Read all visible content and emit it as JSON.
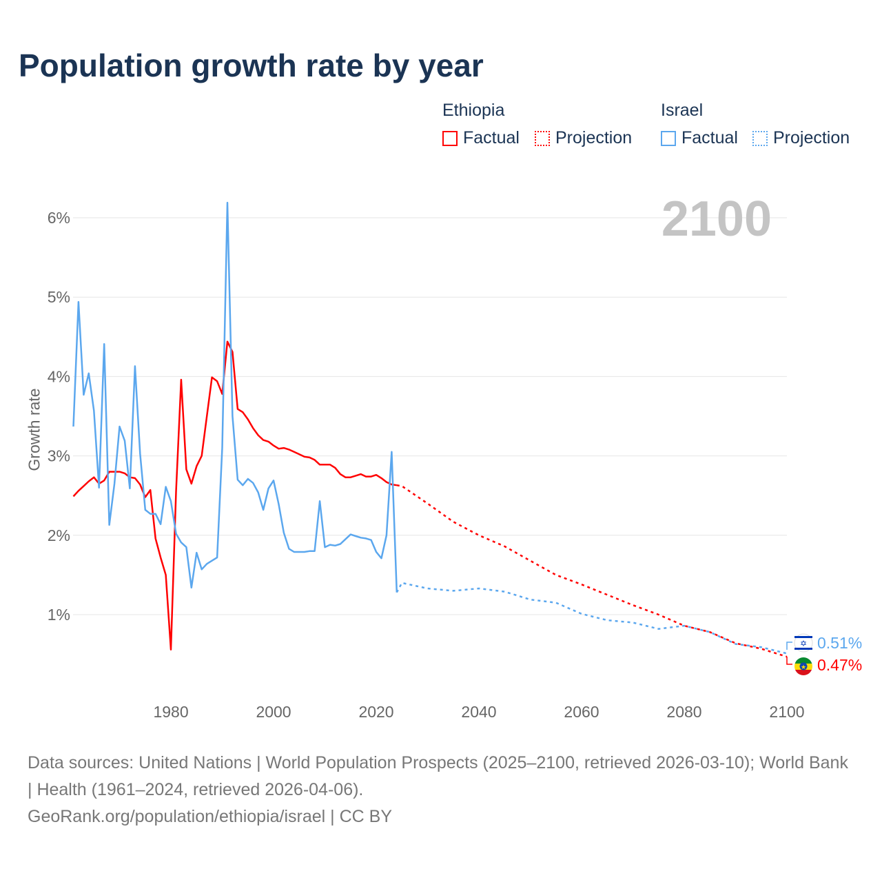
{
  "title": "Population growth rate by year",
  "legend": {
    "groups": [
      {
        "name": "Ethiopia",
        "factual": "Factual",
        "projection": "Projection",
        "color": "#ff0000"
      },
      {
        "name": "Israel",
        "factual": "Factual",
        "projection": "Projection",
        "color": "#5ba7ee"
      }
    ]
  },
  "year_label": "2100",
  "end_labels": {
    "israel": "0.51%",
    "ethiopia": "0.47%"
  },
  "footer": {
    "sources": "Data sources: United Nations | World Population Prospects (2025–2100, retrieved 2026-03-10); World Bank | Health (1961–2024, retrieved 2026-04-06).",
    "link": "GeoRank.org/population/ethiopia/israel | CC BY"
  },
  "chart_data": {
    "type": "line",
    "title": "Population growth rate by year",
    "xlabel": "",
    "ylabel": "Growth rate",
    "xlim": [
      1961,
      2100
    ],
    "ylim": [
      0,
      6.5
    ],
    "xticks": [
      1980,
      2000,
      2020,
      2040,
      2060,
      2080,
      2100
    ],
    "xtick_labels": [
      "1980",
      "2000",
      "2020",
      "2040",
      "2060",
      "2080",
      "2100"
    ],
    "yticks": [
      1,
      2,
      3,
      4,
      5,
      6
    ],
    "ytick_labels": [
      "1%",
      "2%",
      "3%",
      "4%",
      "5%",
      "6%"
    ],
    "grid": true,
    "legend_placement": "top-right",
    "series": [
      {
        "name": "Ethiopia Factual",
        "color": "#ff0000",
        "style": "solid",
        "x": [
          1961,
          1962,
          1963,
          1964,
          1965,
          1966,
          1967,
          1968,
          1969,
          1970,
          1971,
          1972,
          1973,
          1974,
          1975,
          1976,
          1977,
          1978,
          1979,
          1980,
          1981,
          1982,
          1983,
          1984,
          1985,
          1986,
          1987,
          1988,
          1989,
          1990,
          1991,
          1992,
          1993,
          1994,
          1995,
          1996,
          1997,
          1998,
          1999,
          2000,
          2001,
          2002,
          2003,
          2004,
          2005,
          2006,
          2007,
          2008,
          2009,
          2010,
          2011,
          2012,
          2013,
          2014,
          2015,
          2016,
          2017,
          2018,
          2019,
          2020,
          2021,
          2022,
          2023,
          2024
        ],
        "values": [
          2.49,
          2.56,
          2.62,
          2.68,
          2.73,
          2.65,
          2.69,
          2.8,
          2.8,
          2.8,
          2.78,
          2.73,
          2.72,
          2.64,
          2.48,
          2.57,
          1.96,
          1.72,
          1.5,
          0.56,
          2.55,
          3.96,
          2.83,
          2.65,
          2.87,
          3.0,
          3.5,
          3.99,
          3.94,
          3.78,
          4.44,
          4.31,
          3.59,
          3.55,
          3.46,
          3.35,
          3.26,
          3.2,
          3.18,
          3.13,
          3.09,
          3.1,
          3.08,
          3.05,
          3.02,
          2.99,
          2.98,
          2.95,
          2.89,
          2.89,
          2.89,
          2.85,
          2.77,
          2.73,
          2.73,
          2.75,
          2.77,
          2.74,
          2.74,
          2.76,
          2.72,
          2.67,
          2.64,
          2.63
        ]
      },
      {
        "name": "Ethiopia Projection",
        "color": "#ff0000",
        "style": "dotted",
        "x": [
          2024,
          2025,
          2030,
          2035,
          2040,
          2045,
          2050,
          2055,
          2060,
          2065,
          2070,
          2075,
          2080,
          2085,
          2090,
          2095,
          2100
        ],
        "values": [
          2.63,
          2.62,
          2.4,
          2.17,
          2.0,
          1.86,
          1.68,
          1.5,
          1.38,
          1.25,
          1.12,
          1.0,
          0.86,
          0.78,
          0.64,
          0.57,
          0.47
        ]
      },
      {
        "name": "Israel Factual",
        "color": "#5ba7ee",
        "style": "solid",
        "x": [
          1961,
          1962,
          1963,
          1964,
          1965,
          1966,
          1967,
          1968,
          1969,
          1970,
          1971,
          1972,
          1973,
          1974,
          1975,
          1976,
          1977,
          1978,
          1979,
          1980,
          1981,
          1982,
          1983,
          1984,
          1985,
          1986,
          1987,
          1988,
          1989,
          1990,
          1991,
          1992,
          1993,
          1994,
          1995,
          1996,
          1997,
          1998,
          1999,
          2000,
          2001,
          2002,
          2003,
          2004,
          2005,
          2006,
          2007,
          2008,
          2009,
          2010,
          2011,
          2012,
          2013,
          2014,
          2015,
          2016,
          2017,
          2018,
          2019,
          2020,
          2021,
          2022,
          2023,
          2024
        ],
        "values": [
          3.37,
          4.94,
          3.77,
          4.04,
          3.57,
          2.6,
          4.41,
          2.13,
          2.65,
          3.37,
          3.19,
          2.59,
          4.13,
          3.03,
          2.32,
          2.27,
          2.27,
          2.14,
          2.61,
          2.43,
          2.02,
          1.91,
          1.85,
          1.34,
          1.78,
          1.57,
          1.64,
          1.68,
          1.72,
          3.1,
          6.19,
          3.5,
          2.7,
          2.63,
          2.71,
          2.66,
          2.54,
          2.32,
          2.59,
          2.69,
          2.39,
          2.03,
          1.83,
          1.79,
          1.79,
          1.79,
          1.8,
          1.8,
          2.43,
          1.85,
          1.88,
          1.87,
          1.89,
          1.95,
          2.01,
          1.99,
          1.97,
          1.96,
          1.94,
          1.79,
          1.71,
          2.0,
          3.05,
          1.28
        ]
      },
      {
        "name": "Israel Projection",
        "color": "#5ba7ee",
        "style": "dotted",
        "x": [
          2024,
          2025,
          2030,
          2035,
          2040,
          2045,
          2050,
          2055,
          2060,
          2065,
          2070,
          2075,
          2080,
          2085,
          2090,
          2095,
          2100
        ],
        "values": [
          1.28,
          1.4,
          1.33,
          1.3,
          1.33,
          1.29,
          1.19,
          1.15,
          1.01,
          0.93,
          0.9,
          0.82,
          0.86,
          0.78,
          0.63,
          0.59,
          0.51
        ]
      }
    ]
  }
}
